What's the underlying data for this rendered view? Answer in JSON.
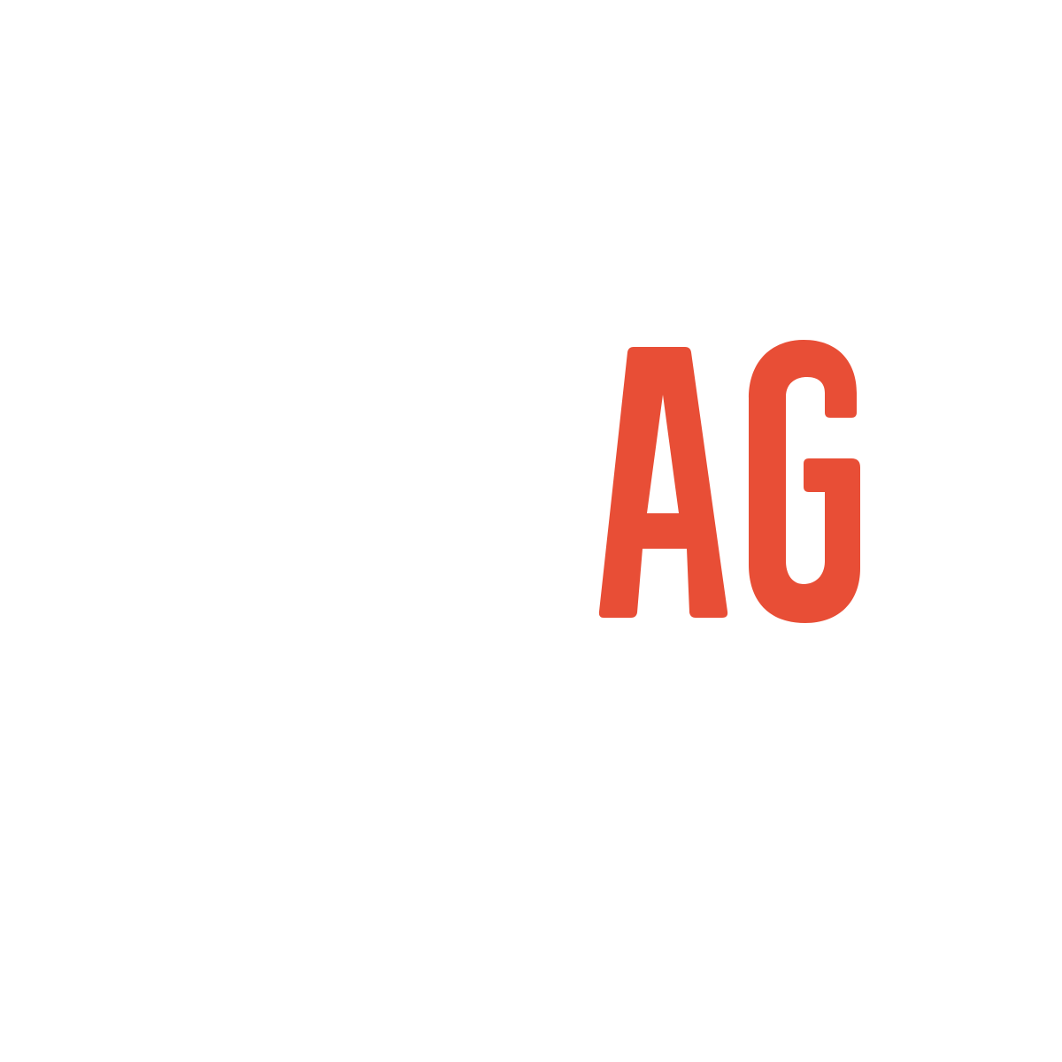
{
  "logo": {
    "text": "AG",
    "color": "#E84E36",
    "background": "#FFFFFF"
  }
}
